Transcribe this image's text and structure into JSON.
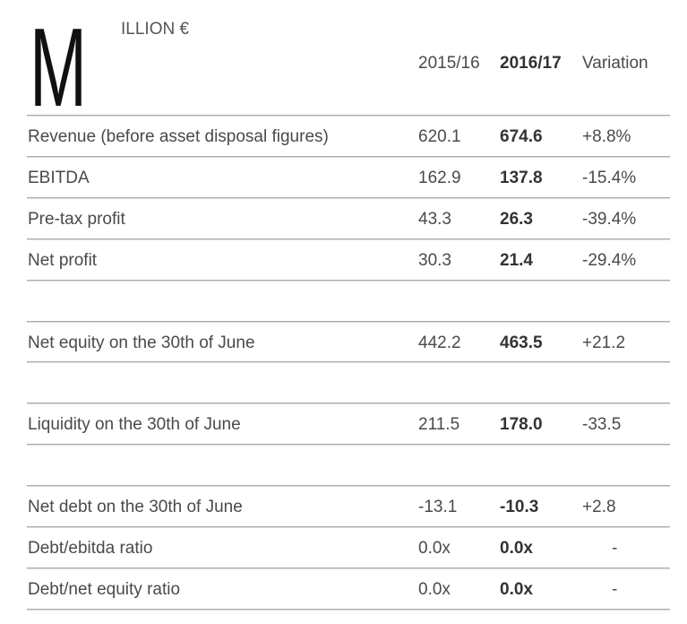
{
  "header": {
    "initial": "M",
    "unit": "ILLION €",
    "columns": [
      "2015/16",
      "2016/17",
      "Variation"
    ]
  },
  "table": {
    "groups": [
      [
        [
          "Revenue (before asset disposal figures)",
          "620.1",
          "674.6",
          "+8.8%"
        ],
        [
          "EBITDA",
          "162.9",
          "137.8",
          "-15.4%"
        ],
        [
          "Pre-tax profit",
          "43.3",
          "26.3",
          "-39.4%"
        ],
        [
          "Net profit",
          "30.3",
          "21.4",
          "-29.4%"
        ]
      ],
      [
        [
          "Net equity on the 30th of June",
          "442.2",
          "463.5",
          "+21.2"
        ]
      ],
      [
        [
          "Liquidity on the 30th of June",
          "211.5",
          "178.0",
          "-33.5"
        ]
      ],
      [
        [
          "Net debt on the 30th of June",
          "-13.1",
          "-10.3",
          "+2.8"
        ],
        [
          "Debt/ebitda ratio",
          "0.0x",
          "0.0x",
          "-"
        ],
        [
          "Debt/net equity ratio",
          "0.0x",
          "0.0x",
          "-"
        ]
      ]
    ]
  }
}
